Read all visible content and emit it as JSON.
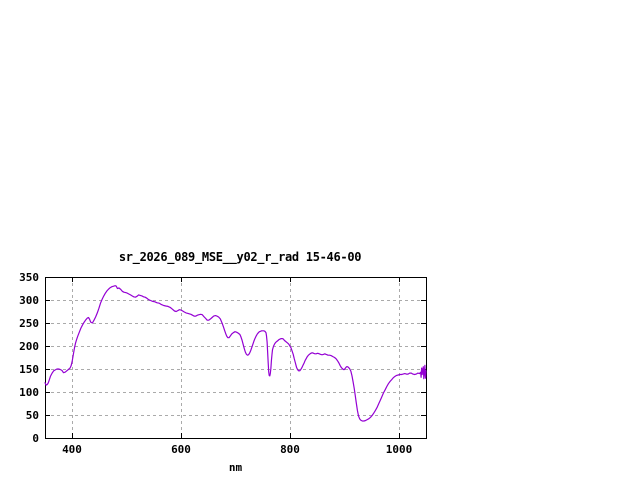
{
  "window": {
    "background": "#ffffff"
  },
  "colors": {
    "background": "#ffffff",
    "axis_border": "#000000",
    "grid": "#aaaaaa",
    "text": "#000000",
    "line": "#9400d3"
  },
  "chart_data": {
    "type": "line",
    "title": "sr_2026_089_MSE__y02_r_rad 15-46-00",
    "xlabel": "nm",
    "ylabel": "",
    "xlim": [
      350,
      1050
    ],
    "ylim": [
      0,
      350
    ],
    "xticks": [
      400,
      600,
      800,
      1000
    ],
    "yticks": [
      0,
      50,
      100,
      150,
      200,
      250,
      300,
      350
    ],
    "grid": true,
    "grid_style": "dashed",
    "legend_position": "none",
    "series": [
      {
        "name": "sr_2026_089_MSE__y02_r_rad 15-46-00",
        "color": "#9400d3",
        "points": [
          [
            350,
            120
          ],
          [
            352,
            115
          ],
          [
            354,
            116
          ],
          [
            356,
            120
          ],
          [
            358,
            127
          ],
          [
            360,
            134
          ],
          [
            363,
            141
          ],
          [
            366,
            146
          ],
          [
            369,
            148
          ],
          [
            372,
            150
          ],
          [
            375,
            150
          ],
          [
            378,
            149
          ],
          [
            381,
            147
          ],
          [
            384,
            142
          ],
          [
            387,
            143
          ],
          [
            390,
            146
          ],
          [
            393,
            149
          ],
          [
            396,
            152
          ],
          [
            398,
            157
          ],
          [
            400,
            167
          ],
          [
            402,
            181
          ],
          [
            404,
            195
          ],
          [
            406,
            206
          ],
          [
            408,
            214
          ],
          [
            410,
            221
          ],
          [
            413,
            230
          ],
          [
            416,
            239
          ],
          [
            419,
            246
          ],
          [
            422,
            252
          ],
          [
            425,
            257
          ],
          [
            428,
            261
          ],
          [
            430,
            262
          ],
          [
            432,
            258
          ],
          [
            434,
            252
          ],
          [
            437,
            250
          ],
          [
            440,
            256
          ],
          [
            443,
            263
          ],
          [
            446,
            272
          ],
          [
            449,
            282
          ],
          [
            452,
            293
          ],
          [
            455,
            302
          ],
          [
            458,
            309
          ],
          [
            461,
            315
          ],
          [
            464,
            320
          ],
          [
            467,
            324
          ],
          [
            470,
            327
          ],
          [
            473,
            329
          ],
          [
            476,
            330
          ],
          [
            479,
            331
          ],
          [
            481,
            330
          ],
          [
            483,
            325
          ],
          [
            486,
            326
          ],
          [
            489,
            323
          ],
          [
            492,
            319
          ],
          [
            495,
            317
          ],
          [
            498,
            316
          ],
          [
            501,
            315
          ],
          [
            504,
            313
          ],
          [
            507,
            311
          ],
          [
            510,
            309
          ],
          [
            513,
            307
          ],
          [
            516,
            306
          ],
          [
            519,
            308
          ],
          [
            522,
            311
          ],
          [
            525,
            310
          ],
          [
            528,
            309
          ],
          [
            531,
            307
          ],
          [
            534,
            306
          ],
          [
            537,
            304
          ],
          [
            540,
            301
          ],
          [
            544,
            299
          ],
          [
            548,
            297
          ],
          [
            552,
            296
          ],
          [
            556,
            294
          ],
          [
            560,
            293
          ],
          [
            564,
            290
          ],
          [
            568,
            288
          ],
          [
            572,
            287
          ],
          [
            576,
            286
          ],
          [
            580,
            284
          ],
          [
            584,
            280
          ],
          [
            588,
            276
          ],
          [
            591,
            275
          ],
          [
            594,
            277
          ],
          [
            597,
            279
          ],
          [
            600,
            278
          ],
          [
            603,
            276
          ],
          [
            606,
            274
          ],
          [
            609,
            272
          ],
          [
            612,
            271
          ],
          [
            615,
            270
          ],
          [
            618,
            269
          ],
          [
            621,
            267
          ],
          [
            624,
            265
          ],
          [
            627,
            265
          ],
          [
            630,
            267
          ],
          [
            633,
            268
          ],
          [
            636,
            269
          ],
          [
            639,
            268
          ],
          [
            642,
            264
          ],
          [
            645,
            260
          ],
          [
            648,
            256
          ],
          [
            651,
            256
          ],
          [
            654,
            259
          ],
          [
            657,
            262
          ],
          [
            660,
            265
          ],
          [
            663,
            266
          ],
          [
            666,
            265
          ],
          [
            669,
            263
          ],
          [
            672,
            259
          ],
          [
            674,
            254
          ],
          [
            676,
            248
          ],
          [
            678,
            241
          ],
          [
            680,
            234
          ],
          [
            682,
            227
          ],
          [
            684,
            221
          ],
          [
            686,
            218
          ],
          [
            688,
            218
          ],
          [
            690,
            221
          ],
          [
            693,
            226
          ],
          [
            696,
            229
          ],
          [
            699,
            231
          ],
          [
            702,
            230
          ],
          [
            705,
            228
          ],
          [
            708,
            225
          ],
          [
            710,
            220
          ],
          [
            712,
            213
          ],
          [
            714,
            204
          ],
          [
            716,
            195
          ],
          [
            718,
            187
          ],
          [
            720,
            182
          ],
          [
            722,
            180
          ],
          [
            724,
            181
          ],
          [
            726,
            185
          ],
          [
            728,
            190
          ],
          [
            730,
            197
          ],
          [
            732,
            204
          ],
          [
            734,
            211
          ],
          [
            736,
            217
          ],
          [
            738,
            222
          ],
          [
            740,
            226
          ],
          [
            742,
            229
          ],
          [
            744,
            231
          ],
          [
            746,
            232
          ],
          [
            748,
            233
          ],
          [
            750,
            233
          ],
          [
            752,
            233
          ],
          [
            754,
            232
          ],
          [
            756,
            229
          ],
          [
            757,
            222
          ],
          [
            758,
            209
          ],
          [
            759,
            188
          ],
          [
            760,
            163
          ],
          [
            761,
            144
          ],
          [
            762,
            136
          ],
          [
            763,
            135
          ],
          [
            764,
            140
          ],
          [
            765,
            152
          ],
          [
            766,
            168
          ],
          [
            767,
            182
          ],
          [
            768,
            192
          ],
          [
            770,
            200
          ],
          [
            772,
            205
          ],
          [
            774,
            208
          ],
          [
            776,
            210
          ],
          [
            778,
            212
          ],
          [
            780,
            214
          ],
          [
            782,
            215
          ],
          [
            784,
            216
          ],
          [
            786,
            216
          ],
          [
            788,
            215
          ],
          [
            790,
            212
          ],
          [
            792,
            210
          ],
          [
            794,
            208
          ],
          [
            796,
            206
          ],
          [
            798,
            204
          ],
          [
            800,
            200
          ],
          [
            802,
            196
          ],
          [
            804,
            189
          ],
          [
            806,
            182
          ],
          [
            808,
            172
          ],
          [
            810,
            163
          ],
          [
            812,
            154
          ],
          [
            814,
            149
          ],
          [
            816,
            146
          ],
          [
            818,
            146
          ],
          [
            820,
            149
          ],
          [
            822,
            153
          ],
          [
            824,
            158
          ],
          [
            826,
            163
          ],
          [
            828,
            169
          ],
          [
            830,
            173
          ],
          [
            832,
            177
          ],
          [
            834,
            180
          ],
          [
            836,
            182
          ],
          [
            838,
            184
          ],
          [
            840,
            185
          ],
          [
            842,
            185
          ],
          [
            844,
            184
          ],
          [
            846,
            183
          ],
          [
            848,
            183
          ],
          [
            850,
            184
          ],
          [
            852,
            184
          ],
          [
            854,
            183
          ],
          [
            856,
            182
          ],
          [
            858,
            181
          ],
          [
            860,
            181
          ],
          [
            862,
            182
          ],
          [
            864,
            183
          ],
          [
            866,
            182
          ],
          [
            868,
            181
          ],
          [
            870,
            180
          ],
          [
            873,
            180
          ],
          [
            876,
            179
          ],
          [
            879,
            177
          ],
          [
            882,
            175
          ],
          [
            885,
            172
          ],
          [
            888,
            167
          ],
          [
            890,
            163
          ],
          [
            892,
            158
          ],
          [
            894,
            154
          ],
          [
            896,
            151
          ],
          [
            898,
            149
          ],
          [
            900,
            149
          ],
          [
            902,
            152
          ],
          [
            904,
            155
          ],
          [
            906,
            155
          ],
          [
            908,
            153
          ],
          [
            910,
            150
          ],
          [
            912,
            145
          ],
          [
            914,
            135
          ],
          [
            916,
            122
          ],
          [
            918,
            108
          ],
          [
            920,
            93
          ],
          [
            922,
            76
          ],
          [
            924,
            60
          ],
          [
            926,
            48
          ],
          [
            928,
            42
          ],
          [
            930,
            39
          ],
          [
            933,
            37
          ],
          [
            936,
            37
          ],
          [
            939,
            38
          ],
          [
            942,
            40
          ],
          [
            945,
            42
          ],
          [
            948,
            45
          ],
          [
            951,
            49
          ],
          [
            954,
            54
          ],
          [
            957,
            60
          ],
          [
            960,
            66
          ],
          [
            963,
            74
          ],
          [
            966,
            82
          ],
          [
            969,
            90
          ],
          [
            972,
            98
          ],
          [
            975,
            105
          ],
          [
            978,
            112
          ],
          [
            981,
            118
          ],
          [
            984,
            123
          ],
          [
            987,
            127
          ],
          [
            990,
            131
          ],
          [
            993,
            134
          ],
          [
            996,
            136
          ],
          [
            999,
            137
          ],
          [
            1002,
            138
          ],
          [
            1005,
            138
          ],
          [
            1008,
            139
          ],
          [
            1011,
            140
          ],
          [
            1014,
            139
          ],
          [
            1017,
            139
          ],
          [
            1020,
            141
          ],
          [
            1023,
            141
          ],
          [
            1026,
            139
          ],
          [
            1029,
            138
          ],
          [
            1032,
            139
          ],
          [
            1035,
            141
          ],
          [
            1038,
            140
          ],
          [
            1040,
            143
          ],
          [
            1041,
            132
          ],
          [
            1042,
            152
          ],
          [
            1043,
            138
          ],
          [
            1044,
            148
          ],
          [
            1045,
            155
          ],
          [
            1046,
            129
          ],
          [
            1047,
            142
          ],
          [
            1048,
            158
          ],
          [
            1049,
            130
          ],
          [
            1050,
            146
          ]
        ]
      }
    ]
  }
}
